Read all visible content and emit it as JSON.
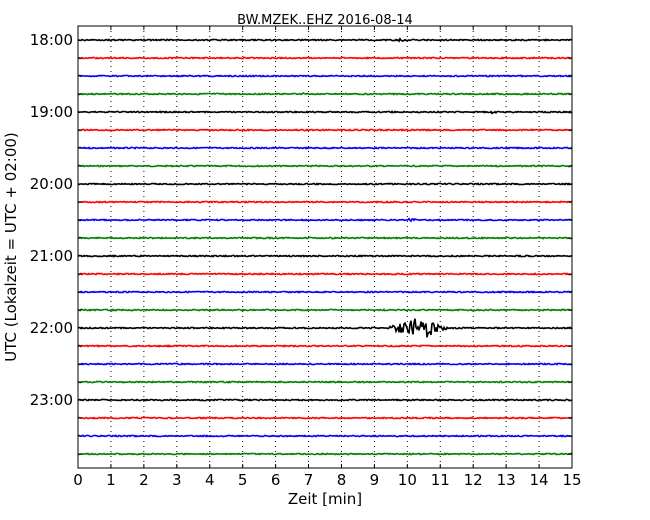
{
  "chart_data": {
    "type": "line",
    "title": "BW.MZEK..EHZ 2016-08-14",
    "xlabel": "Zeit  [min]",
    "ylabel": "UTC (Lokalzeit = UTC + 02:00)",
    "xlim": [
      0,
      15
    ],
    "x_ticks": [
      "0",
      "1",
      "2",
      "3",
      "4",
      "5",
      "6",
      "7",
      "8",
      "9",
      "10",
      "11",
      "12",
      "13",
      "14",
      "15"
    ],
    "y_tick_labels": [
      "18:00",
      "19:00",
      "20:00",
      "21:00",
      "22:00",
      "23:00"
    ],
    "trace_start_times": [
      "18:00",
      "18:15",
      "18:30",
      "18:45",
      "19:00",
      "19:15",
      "19:30",
      "19:45",
      "20:00",
      "20:15",
      "20:30",
      "20:45",
      "21:00",
      "21:15",
      "21:30",
      "21:45",
      "22:00",
      "22:15",
      "22:30",
      "22:45",
      "23:00",
      "23:15",
      "23:30",
      "23:45"
    ],
    "trace_colors": [
      "#000000",
      "#ff0000",
      "#0000ff",
      "#008000"
    ],
    "grid": "vertical dotted",
    "events": [
      {
        "trace": "18:00",
        "minute": 9.8,
        "amplitude": 0.15,
        "duration": 0.3
      },
      {
        "trace": "18:45",
        "minute": 6.8,
        "amplitude": 0.12,
        "duration": 0.5
      },
      {
        "trace": "19:00",
        "minute": 12.6,
        "amplitude": 0.15,
        "duration": 0.3
      },
      {
        "trace": "20:30",
        "minute": 10.1,
        "amplitude": 0.15,
        "duration": 0.5
      },
      {
        "trace": "22:00",
        "minute": 10.4,
        "amplitude": 1.0,
        "duration": 2.0
      }
    ]
  }
}
